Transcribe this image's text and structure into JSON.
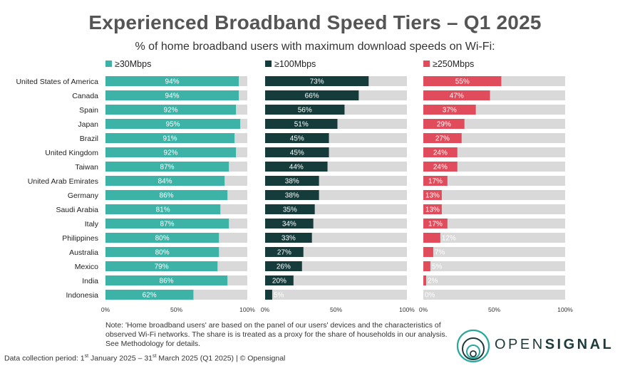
{
  "title": "Experienced Broadband Speed Tiers – Q1 2025",
  "subtitle": "% of home broadband users with maximum download speeds on Wi-Fi:",
  "note_lines": [
    "Note: 'Home broadband users' are based on the panel of our users' devices and the characteristics of",
    "observed Wi-Fi networks. The share is is treated as a proxy for the share of households in our analysis.",
    "See Methodology for details."
  ],
  "footer": {
    "prefix": "Data collection period: 1",
    "st": "st",
    "mid": " January 2025 – 31",
    "st2": "st",
    "suffix": " March 2025 (Q1 2025) | © Opensignal"
  },
  "logo": {
    "light": "OPEN",
    "bold": "SIGNAL"
  },
  "colors": {
    "track": "#d9d9d9",
    "label_dark": "#333333"
  },
  "chart_data": {
    "type": "bar",
    "orientation": "horizontal",
    "categories": [
      "United States of America",
      "Canada",
      "Spain",
      "Japan",
      "Brazil",
      "United Kingdom",
      "Taiwan",
      "United Arab Emirates",
      "Germany",
      "Saudi Arabia",
      "Italy",
      "Philippines",
      "Australia",
      "Mexico",
      "India",
      "Indonesia"
    ],
    "xlim": [
      0,
      100
    ],
    "ticks": [
      "0%",
      "50%",
      "100%"
    ],
    "legend_position": "top",
    "series": [
      {
        "name": "≥30Mbps",
        "color": "#3cb3a6",
        "values": [
          94,
          94,
          92,
          95,
          91,
          92,
          87,
          84,
          86,
          81,
          87,
          80,
          80,
          79,
          86,
          62
        ]
      },
      {
        "name": "≥100Mbps",
        "color": "#163b3b",
        "values": [
          73,
          66,
          56,
          51,
          45,
          45,
          44,
          38,
          38,
          35,
          34,
          33,
          27,
          26,
          20,
          5
        ]
      },
      {
        "name": "≥250Mbps",
        "color": "#e04c5b",
        "values": [
          55,
          47,
          37,
          29,
          27,
          24,
          24,
          17,
          13,
          13,
          17,
          12,
          7,
          5,
          2,
          0
        ]
      }
    ]
  }
}
